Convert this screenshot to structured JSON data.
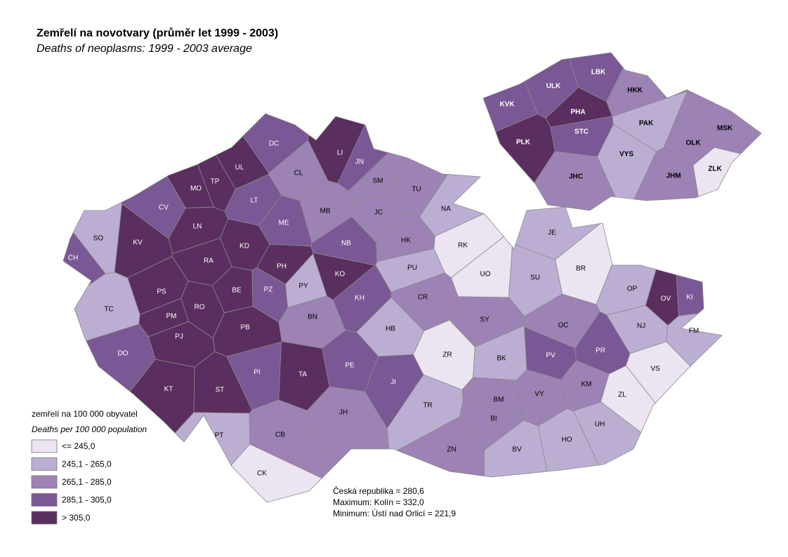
{
  "title": "Zemřelí na novotvary (průměr let 1999 - 2003)",
  "subtitle": "Deaths of neoplasms: 1999 - 2003 average",
  "legend": {
    "title": "zemřelí na 100 000 obyvatel",
    "subtitle": "Deaths per 100 000 population",
    "items": [
      {
        "label": "<= 245,0",
        "color": "#ece4f0"
      },
      {
        "label": "245,1 - 265,0",
        "color": "#bcaed3"
      },
      {
        "label": "265,1 - 285,0",
        "color": "#9d82b5"
      },
      {
        "label": "285,1 - 305,0",
        "color": "#7a5795"
      },
      {
        "label": "> 305,0",
        "color": "#5a2e5e"
      }
    ]
  },
  "notes": [
    "Česká republika = 280,6",
    "Maximum: Kolín = 332,0",
    "Minimum: Ústí nad Orlicí = 221,9"
  ],
  "districts": [
    {
      "label": "DC",
      "class": 3
    },
    {
      "label": "LI",
      "class": 4
    },
    {
      "label": "JN",
      "class": 3
    },
    {
      "label": "UL",
      "class": 4
    },
    {
      "label": "TP",
      "class": 4
    },
    {
      "label": "MO",
      "class": 4
    },
    {
      "label": "CL",
      "class": 2
    },
    {
      "label": "SM",
      "class": 2
    },
    {
      "label": "TU",
      "class": 2
    },
    {
      "label": "NA",
      "class": 1
    },
    {
      "label": "CV",
      "class": 3
    },
    {
      "label": "LT",
      "class": 3
    },
    {
      "label": "MB",
      "class": 2
    },
    {
      "label": "JC",
      "class": 2
    },
    {
      "label": "ME",
      "class": 3
    },
    {
      "label": "SO",
      "class": 1
    },
    {
      "label": "KV",
      "class": 4
    },
    {
      "label": "LN",
      "class": 4
    },
    {
      "label": "KD",
      "class": 4
    },
    {
      "label": "NB",
      "class": 3
    },
    {
      "label": "HK",
      "class": 2
    },
    {
      "label": "RK",
      "class": 0
    },
    {
      "label": "JE",
      "class": 1
    },
    {
      "label": "CH",
      "class": 3
    },
    {
      "label": "RA",
      "class": 4
    },
    {
      "label": "PH",
      "class": 4
    },
    {
      "label": "KO",
      "class": 4
    },
    {
      "label": "PU",
      "class": 1
    },
    {
      "label": "UO",
      "class": 0
    },
    {
      "label": "BR",
      "class": 0
    },
    {
      "label": "SU",
      "class": 1
    },
    {
      "label": "PS",
      "class": 4
    },
    {
      "label": "BE",
      "class": 4
    },
    {
      "label": "PZ",
      "class": 3
    },
    {
      "label": "PY",
      "class": 1
    },
    {
      "label": "OP",
      "class": 1
    },
    {
      "label": "CR",
      "class": 2
    },
    {
      "label": "KH",
      "class": 3
    },
    {
      "label": "OV",
      "class": 4
    },
    {
      "label": "KI",
      "class": 3
    },
    {
      "label": "TC",
      "class": 1
    },
    {
      "label": "RO",
      "class": 4
    },
    {
      "label": "PM",
      "class": 4
    },
    {
      "label": "BN",
      "class": 2
    },
    {
      "label": "SY",
      "class": 2
    },
    {
      "label": "NJ",
      "class": 1
    },
    {
      "label": "OC",
      "class": 2
    },
    {
      "label": "HB",
      "class": 1
    },
    {
      "label": "FM",
      "class": 1
    },
    {
      "label": "PB",
      "class": 4
    },
    {
      "label": "PJ",
      "class": 4
    },
    {
      "label": "ZR",
      "class": 0
    },
    {
      "label": "BK",
      "class": 1
    },
    {
      "label": "PV",
      "class": 3
    },
    {
      "label": "DO",
      "class": 3
    },
    {
      "label": "PR",
      "class": 3
    },
    {
      "label": "VS",
      "class": 0
    },
    {
      "label": "PE",
      "class": 3
    },
    {
      "label": "PI",
      "class": 3
    },
    {
      "label": "TA",
      "class": 4
    },
    {
      "label": "JI",
      "class": 3
    },
    {
      "label": "KM",
      "class": 2
    },
    {
      "label": "KT",
      "class": 4
    },
    {
      "label": "ST",
      "class": 4
    },
    {
      "label": "BM",
      "class": 2
    },
    {
      "label": "VY",
      "class": 2
    },
    {
      "label": "ZL",
      "class": 0
    },
    {
      "label": "TR",
      "class": 1
    },
    {
      "label": "JH",
      "class": 2
    },
    {
      "label": "BI",
      "class": 2
    },
    {
      "label": "UH",
      "class": 1
    },
    {
      "label": "PT",
      "class": 1
    },
    {
      "label": "CB",
      "class": 2
    },
    {
      "label": "HO",
      "class": 1
    },
    {
      "label": "ZN",
      "class": 2
    },
    {
      "label": "BV",
      "class": 1
    },
    {
      "label": "CK",
      "class": 0
    }
  ],
  "regions": [
    {
      "label": "KVK",
      "class": 3
    },
    {
      "label": "ULK",
      "class": 3
    },
    {
      "label": "LBK",
      "class": 3
    },
    {
      "label": "HKK",
      "class": 2
    },
    {
      "label": "PHA",
      "class": 4
    },
    {
      "label": "STC",
      "class": 3
    },
    {
      "label": "PLK",
      "class": 4
    },
    {
      "label": "PAK",
      "class": 1
    },
    {
      "label": "MSK",
      "class": 2
    },
    {
      "label": "VYS",
      "class": 1
    },
    {
      "label": "OLK",
      "class": 2
    },
    {
      "label": "ZLK",
      "class": 0
    },
    {
      "label": "JHC",
      "class": 2
    },
    {
      "label": "JHM",
      "class": 2
    }
  ]
}
